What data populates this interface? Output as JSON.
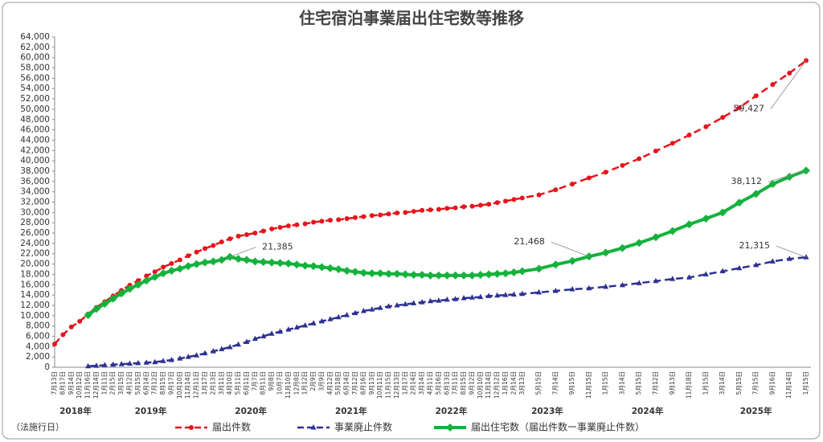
{
  "chart_data": {
    "type": "line",
    "title": "住宅宿泊事業届出住宅数等推移",
    "note": "（法施行日）",
    "categories": [
      "7月13日",
      "8月17日",
      "9月14日",
      "10月12日",
      "11月16日",
      "12月14日",
      "1月11日",
      "2月15日",
      "3月15日",
      "4月12日",
      "5月15日",
      "6月14日",
      "7月12日",
      "8月15日",
      "9月17日",
      "10月10日",
      "11月14日",
      "12月11日",
      "1月17日",
      "2月13日",
      "3月11日",
      "4月10日",
      "5月11日",
      "6月11日",
      "7月7日",
      "8月11日",
      "9月8日",
      "10月7日",
      "11月10日",
      "12月8日",
      "1月12日",
      "2月9日",
      "3月9日",
      "4月12日",
      "5月18日",
      "6月14日",
      "7月12日",
      "8月16日",
      "9月13日",
      "10月11日",
      "11月15日",
      "12月13日",
      "1月17日",
      "2月14日",
      "3月14日",
      "4月11日",
      "5月16日",
      "6月13日",
      "7月11日",
      "8月15日",
      "9月12日",
      "10月10日",
      "11月14日",
      "12月12日",
      "1月16日",
      "2月14日",
      "3月13日",
      "5月15日",
      "7月14日",
      "9月15日",
      "11月15日",
      "1月15日",
      "3月14日",
      "5月15日",
      "7月12日",
      "9月13日",
      "11月18日",
      "1月15日",
      "3月14日",
      "5月15日",
      "7月15日",
      "9月16日",
      "11月14日",
      "1月15日"
    ],
    "category_years": [
      "2018年",
      null,
      null,
      null,
      null,
      null,
      "2019年",
      null,
      null,
      null,
      null,
      null,
      null,
      null,
      null,
      null,
      null,
      null,
      "2020年",
      null,
      null,
      null,
      null,
      null,
      null,
      null,
      null,
      null,
      null,
      null,
      "2021年",
      null,
      null,
      null,
      null,
      null,
      null,
      null,
      null,
      null,
      null,
      null,
      "2022年",
      null,
      null,
      null,
      null,
      null,
      null,
      null,
      null,
      null,
      null,
      null,
      "2023年",
      null,
      null,
      null,
      null,
      null,
      null,
      "2024年",
      null,
      null,
      null,
      null,
      null,
      "2025年",
      null,
      null,
      null,
      null,
      null,
      null
    ],
    "series": [
      {
        "name": "届出件数",
        "color": "#e8141b",
        "marker": "circle",
        "dashed": true,
        "values": [
          4500,
          6300,
          7800,
          8900,
          10300,
          11600,
          12700,
          13800,
          14900,
          15900,
          16800,
          17700,
          18500,
          19400,
          20100,
          20800,
          21600,
          22300,
          23000,
          23600,
          24300,
          24900,
          25400,
          25700,
          26000,
          26400,
          26800,
          27100,
          27400,
          27600,
          27800,
          28100,
          28300,
          28500,
          28600,
          28800,
          29000,
          29200,
          29400,
          29500,
          29700,
          29900,
          30000,
          30200,
          30400,
          30500,
          30600,
          30800,
          30900,
          31100,
          31200,
          31400,
          31600,
          31900,
          32200,
          32500,
          32800,
          33400,
          34400,
          35500,
          36700,
          37800,
          39100,
          40400,
          41900,
          43400,
          45000,
          46600,
          48400,
          50300,
          52600,
          54800,
          57000,
          59427
        ],
        "value_labels": [
          null,
          null,
          null,
          null,
          null,
          null,
          null,
          null,
          null,
          null,
          null,
          null,
          null,
          null,
          null,
          null,
          null,
          null,
          null,
          null,
          null,
          null,
          null,
          null,
          null,
          null,
          null,
          null,
          null,
          null,
          null,
          null,
          null,
          null,
          null,
          null,
          null,
          null,
          null,
          null,
          null,
          null,
          null,
          null,
          null,
          null,
          null,
          null,
          null,
          null,
          null,
          null,
          null,
          null,
          null,
          null,
          null,
          null,
          null,
          null,
          null,
          null,
          null,
          null,
          null,
          null,
          null,
          null,
          null,
          null,
          null,
          null,
          null,
          "59,427"
        ]
      },
      {
        "name": "事業廃止件数",
        "color": "#2e3192",
        "marker": "triangle",
        "dashed": true,
        "values": [
          null,
          null,
          null,
          null,
          200,
          300,
          400,
          500,
          600,
          700,
          800,
          900,
          1000,
          1200,
          1400,
          1700,
          2000,
          2300,
          2700,
          3100,
          3500,
          3900,
          4400,
          4900,
          5500,
          6000,
          6500,
          6900,
          7300,
          7700,
          8100,
          8500,
          8900,
          9300,
          9700,
          10100,
          10500,
          10900,
          11200,
          11500,
          11800,
          12000,
          12200,
          12400,
          12600,
          12800,
          12900,
          13100,
          13200,
          13400,
          13500,
          13600,
          13800,
          13900,
          14000,
          14100,
          14200,
          14500,
          14800,
          15100,
          15300,
          15600,
          15900,
          16300,
          16700,
          17100,
          17400,
          18000,
          18600,
          19200,
          19800,
          20500,
          21000,
          21315
        ],
        "value_labels": [
          null,
          null,
          null,
          null,
          null,
          null,
          null,
          null,
          null,
          null,
          null,
          null,
          null,
          null,
          null,
          null,
          null,
          null,
          null,
          null,
          null,
          null,
          null,
          null,
          null,
          null,
          null,
          null,
          null,
          null,
          null,
          null,
          null,
          null,
          null,
          null,
          null,
          null,
          null,
          null,
          null,
          null,
          null,
          null,
          null,
          null,
          null,
          null,
          null,
          null,
          null,
          null,
          null,
          null,
          null,
          null,
          null,
          null,
          null,
          null,
          null,
          null,
          null,
          null,
          null,
          null,
          null,
          null,
          null,
          null,
          null,
          null,
          null,
          "21,315"
        ]
      },
      {
        "name": "届出住宅数（届出件数ー事業廃止件数）",
        "color": "#14b23c",
        "marker": "diamond",
        "dashed": false,
        "values": [
          null,
          null,
          null,
          null,
          10100,
          11300,
          12300,
          13300,
          14300,
          15200,
          16000,
          16800,
          17500,
          18200,
          18700,
          19100,
          19600,
          20000,
          20300,
          20500,
          20800,
          21385,
          21000,
          20800,
          20500,
          20400,
          20300,
          20200,
          20100,
          19900,
          19700,
          19600,
          19400,
          19200,
          19000,
          18700,
          18500,
          18300,
          18200,
          18200,
          18100,
          18100,
          18000,
          17900,
          17900,
          17800,
          17800,
          17800,
          17800,
          17800,
          17800,
          17900,
          18000,
          18100,
          18200,
          18400,
          18600,
          19100,
          19900,
          20600,
          21468,
          22200,
          23100,
          24100,
          25200,
          26400,
          27700,
          28800,
          30000,
          31900,
          33600,
          35500,
          36900,
          38112
        ],
        "value_labels": [
          null,
          null,
          null,
          null,
          null,
          null,
          null,
          null,
          null,
          null,
          null,
          null,
          null,
          null,
          null,
          null,
          null,
          null,
          null,
          null,
          null,
          "21,385",
          null,
          null,
          null,
          null,
          null,
          null,
          null,
          null,
          null,
          null,
          null,
          null,
          null,
          null,
          null,
          null,
          null,
          null,
          null,
          null,
          null,
          null,
          null,
          null,
          null,
          null,
          null,
          null,
          null,
          null,
          null,
          null,
          null,
          null,
          null,
          null,
          null,
          null,
          "21,468",
          null,
          null,
          null,
          null,
          null,
          null,
          null,
          null,
          null,
          null,
          null,
          null,
          "38,112"
        ]
      }
    ],
    "ylim": [
      0,
      64000
    ],
    "yticks": [
      0,
      {
        "value": 2000,
        "label": "2,000"
      },
      {
        "value": 4000,
        "label": "4,000"
      },
      {
        "value": 6000,
        "label": "6,000"
      },
      {
        "value": 8000,
        "label": "8,000"
      },
      {
        "value": 10000,
        "label": "10,000"
      },
      {
        "value": 12000,
        "label": "12,000"
      },
      {
        "value": 14000,
        "label": "14,000"
      },
      {
        "value": 16000,
        "label": "16,000"
      },
      {
        "value": 18000,
        "label": "18,000"
      },
      {
        "value": 20000,
        "label": "20,000"
      },
      {
        "value": 22000,
        "label": "22,000"
      },
      {
        "value": 24000,
        "label": "24,000"
      },
      {
        "value": 26000,
        "label": "26,000"
      },
      {
        "value": 28000,
        "label": "28,000"
      },
      {
        "value": 30000,
        "label": "30,000"
      },
      {
        "value": 32000,
        "label": "32,000"
      },
      {
        "value": 34000,
        "label": "34,000"
      },
      {
        "value": 36000,
        "label": "36,000"
      },
      {
        "value": 38000,
        "label": "38,000"
      },
      {
        "value": 40000,
        "label": "40,000"
      },
      {
        "value": 42000,
        "label": "42,000"
      },
      {
        "value": 44000,
        "label": "44,000"
      },
      {
        "value": 46000,
        "label": "46,000"
      },
      {
        "value": 48000,
        "label": "48,000"
      },
      {
        "value": 50000,
        "label": "50,000"
      },
      {
        "value": 52000,
        "label": "52,000"
      },
      {
        "value": 54000,
        "label": "54,000"
      },
      {
        "value": 56000,
        "label": "56,000"
      },
      {
        "value": 58000,
        "label": "58,000"
      },
      {
        "value": 60000,
        "label": "60,000"
      },
      {
        "value": 62000,
        "label": "62,000"
      },
      {
        "value": 64000,
        "label": "64,000"
      }
    ],
    "grid": false,
    "legend": "bottom"
  }
}
